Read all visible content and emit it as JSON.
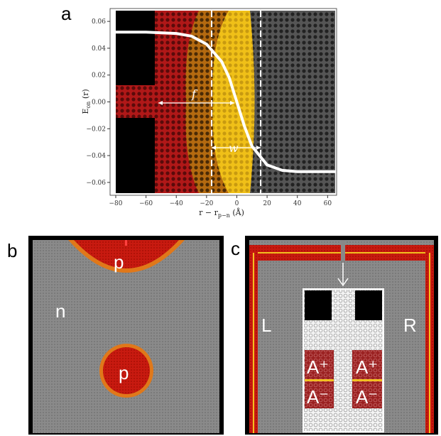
{
  "panels": {
    "a": "a",
    "b": "b",
    "c": "c"
  },
  "chart_data": {
    "type": "line",
    "x_ticks": [
      "−80",
      "−60",
      "−40",
      "−20",
      "0",
      "20",
      "40",
      "60"
    ],
    "y_ticks": [
      "0.06",
      "0.04",
      "0.02",
      "0.00",
      "−0.02",
      "−0.04",
      "−0.06"
    ],
    "xlabel": "r − r_{p−n} (Å)",
    "ylabel": "E_on (r)",
    "xlim": [
      -80,
      65
    ],
    "ylim": [
      -0.068,
      0.068
    ],
    "series": [
      {
        "x": [
          -80,
          -60,
          -40,
          -30,
          -20,
          -10,
          -5,
          0,
          5,
          10,
          20,
          30,
          40,
          50,
          65
        ],
        "y": [
          0.052,
          0.052,
          0.051,
          0.049,
          0.043,
          0.03,
          0.018,
          0.0,
          -0.018,
          -0.033,
          -0.047,
          -0.051,
          -0.052,
          -0.052,
          -0.052
        ]
      }
    ],
    "annotations": {
      "f": "f",
      "w": "w"
    },
    "grid": false
  },
  "panel_b": {
    "labels": [
      "p",
      "n",
      "p"
    ]
  },
  "panel_c": {
    "labels": [
      "L",
      "R"
    ],
    "inset": [
      "A⁺",
      "A⁻",
      "A⁺",
      "A⁻"
    ]
  },
  "colors": {
    "p_region": "#c01010",
    "n_region": "#808080",
    "junction": "#e8a020",
    "depletion": "#f2c020"
  }
}
